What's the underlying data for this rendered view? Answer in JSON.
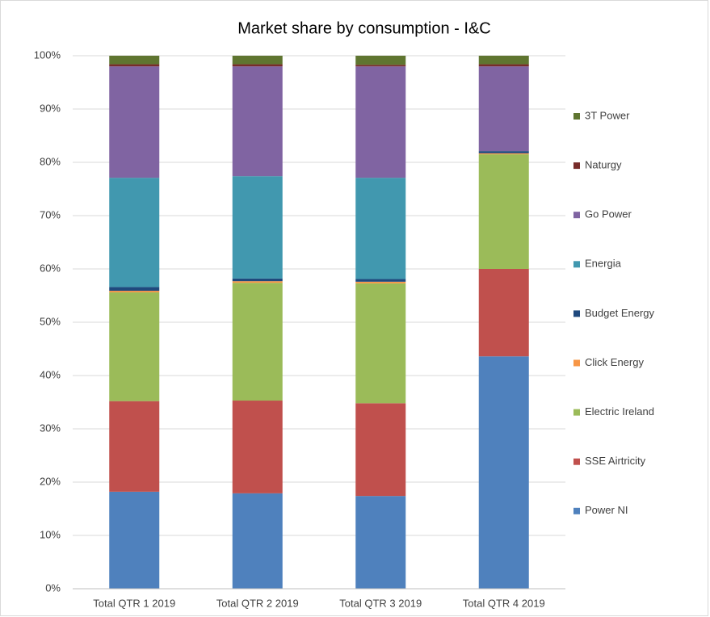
{
  "chart_data": {
    "type": "stacked_bar",
    "title": "Market share by consumption - I&C",
    "categories": [
      "Total QTR 1 2019",
      "Total QTR 2 2019",
      "Total QTR 3 2019",
      "Total QTR 4 2019"
    ],
    "series": [
      {
        "name": "Power NI",
        "color": "#4f81bd",
        "values": [
          18.2,
          17.9,
          17.4,
          43.6
        ]
      },
      {
        "name": "SSE Airtricity",
        "color": "#c0504d",
        "values": [
          17.0,
          17.4,
          17.4,
          16.4
        ]
      },
      {
        "name": "Electric Ireland",
        "color": "#9bbb59",
        "values": [
          20.4,
          22.1,
          22.5,
          21.5
        ]
      },
      {
        "name": "Click Energy",
        "color": "#f79646",
        "values": [
          0.3,
          0.3,
          0.3,
          0.2
        ]
      },
      {
        "name": "Budget Energy",
        "color": "#1f497d",
        "values": [
          0.7,
          0.5,
          0.5,
          0.4
        ]
      },
      {
        "name": "Energia",
        "color": "#4198af",
        "values": [
          20.5,
          19.2,
          19.0,
          0
        ]
      },
      {
        "name": "Go Power",
        "color": "#8064a2",
        "values": [
          20.9,
          20.6,
          20.9,
          15.9
        ]
      },
      {
        "name": "Naturgy",
        "color": "#772c2a",
        "values": [
          0.4,
          0.4,
          0.3,
          0.4
        ]
      },
      {
        "name": "3T Power",
        "color": "#5f7530",
        "values": [
          1.6,
          1.6,
          1.7,
          1.6
        ]
      }
    ],
    "ylim": [
      0,
      100
    ],
    "yticks": [
      {
        "value": 0,
        "label": "0%"
      },
      {
        "value": 10,
        "label": "10%"
      },
      {
        "value": 20,
        "label": "20%"
      },
      {
        "value": 30,
        "label": "30%"
      },
      {
        "value": 40,
        "label": "40%"
      },
      {
        "value": 50,
        "label": "50%"
      },
      {
        "value": 60,
        "label": "60%"
      },
      {
        "value": 70,
        "label": "70%"
      },
      {
        "value": 80,
        "label": "80%"
      },
      {
        "value": 90,
        "label": "90%"
      },
      {
        "value": 100,
        "label": "100%"
      }
    ],
    "grid": true,
    "legend": "right"
  }
}
